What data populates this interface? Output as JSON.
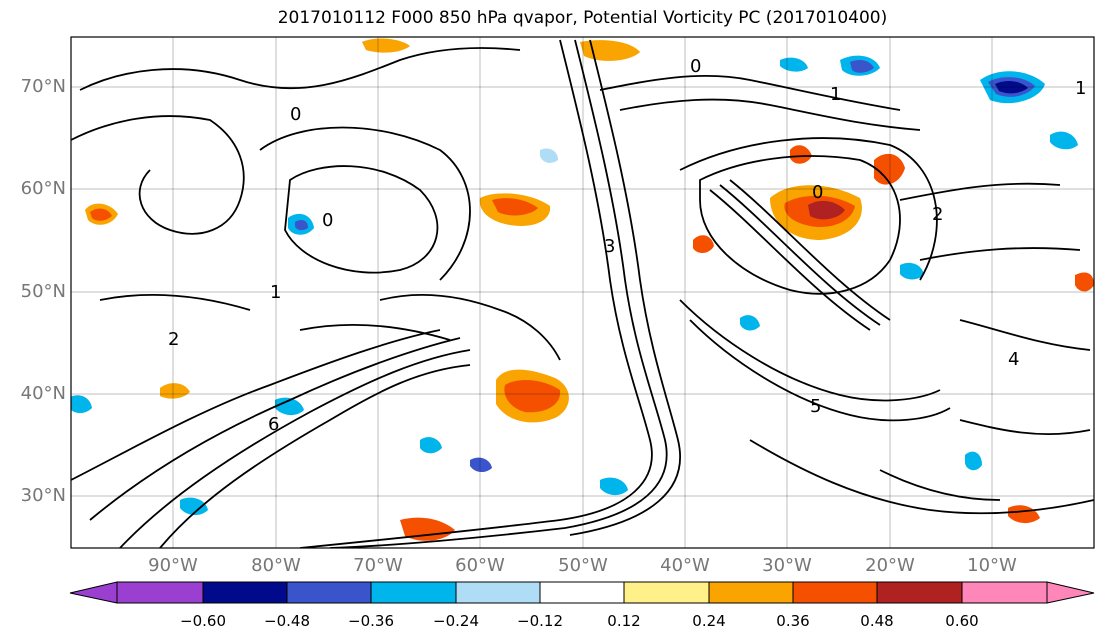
{
  "title": "2017010112 F000 850 hPa qvapor, Potential Vorticity PC (2017010400)",
  "lat_labels": [
    "70°N",
    "60°N",
    "50°N",
    "40°N",
    "30°N"
  ],
  "lon_labels": [
    "90°W",
    "80°W",
    "70°W",
    "60°W",
    "50°W",
    "40°W",
    "30°W",
    "20°W",
    "10°W"
  ],
  "map_extent": {
    "lon_min": -100,
    "lon_max": 2,
    "lat_min": 25,
    "lat_max": 75
  },
  "colorbar": {
    "tick_labels": [
      "−0.60",
      "−0.48",
      "−0.36",
      "−0.24",
      "−0.12",
      "0.12",
      "0.24",
      "0.36",
      "0.48",
      "0.60"
    ],
    "under_color": "#9a3fd0",
    "colors": [
      "#000a8a",
      "#3a55cc",
      "#00b4ec",
      "#b0ddf6",
      "#ffffff",
      "#fff08a",
      "#f9a400",
      "#f55000",
      "#b02222"
    ],
    "over_color": "#ff86b8"
  },
  "contour_labels": [
    "0",
    "1",
    "2",
    "3",
    "4",
    "5",
    "6"
  ]
}
